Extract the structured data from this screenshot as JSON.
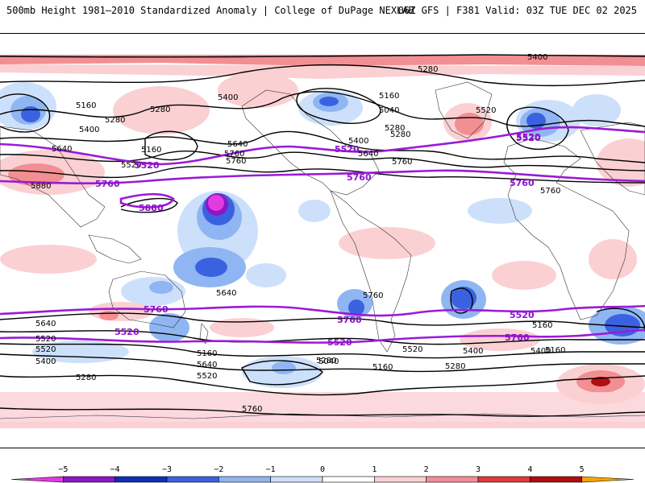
{
  "header": {
    "title": "500mb Height 1981–2010 Standardized Anomaly | College of DuPage NEXLAB",
    "run_info": "06Z GFS | F381 Valid: 03Z TUE DEC 02 2025"
  },
  "map": {
    "contour_labels": {
      "black": [
        "5400",
        "5280",
        "5160",
        "5280",
        "5400",
        "5160",
        "5280",
        "5040",
        "5520",
        "5400",
        "5280",
        "5640",
        "5160",
        "5640",
        "5760",
        "5520",
        "5760",
        "5280",
        "5400",
        "5640",
        "5880",
        "5760",
        "5760",
        "5640",
        "5760",
        "5640",
        "5520",
        "5520",
        "5400",
        "5280",
        "5160",
        "5640",
        "5520",
        "5400",
        "5280",
        "5040",
        "5160",
        "5280",
        "5160",
        "5520",
        "5400",
        "5760",
        "5160"
      ],
      "purple": [
        "5520",
        "5520",
        "5760",
        "5880",
        "5760",
        "5520",
        "5760",
        "5760",
        "5760",
        "5520",
        "5520",
        "5520",
        "5760",
        "5520"
      ]
    },
    "colors": {
      "height_contour": "#000000",
      "highlighted_contour": "#9a1bd6"
    }
  },
  "colorbar": {
    "ticks": [
      "−5",
      "−4",
      "−3",
      "−2",
      "−1",
      "0",
      "1",
      "2",
      "3",
      "4",
      "5"
    ],
    "bins": [
      {
        "color": "#e23ce0"
      },
      {
        "color": "#8e16c4"
      },
      {
        "color": "#0e2fb8"
      },
      {
        "color": "#3a62e0"
      },
      {
        "color": "#8fb6f2"
      },
      {
        "color": "#cde0fb"
      },
      {
        "color": "#ffffff"
      },
      {
        "color": "#fbd0d3"
      },
      {
        "color": "#f28f92"
      },
      {
        "color": "#e0393c"
      },
      {
        "color": "#b20c10"
      },
      {
        "color": "#f5a500"
      }
    ]
  }
}
